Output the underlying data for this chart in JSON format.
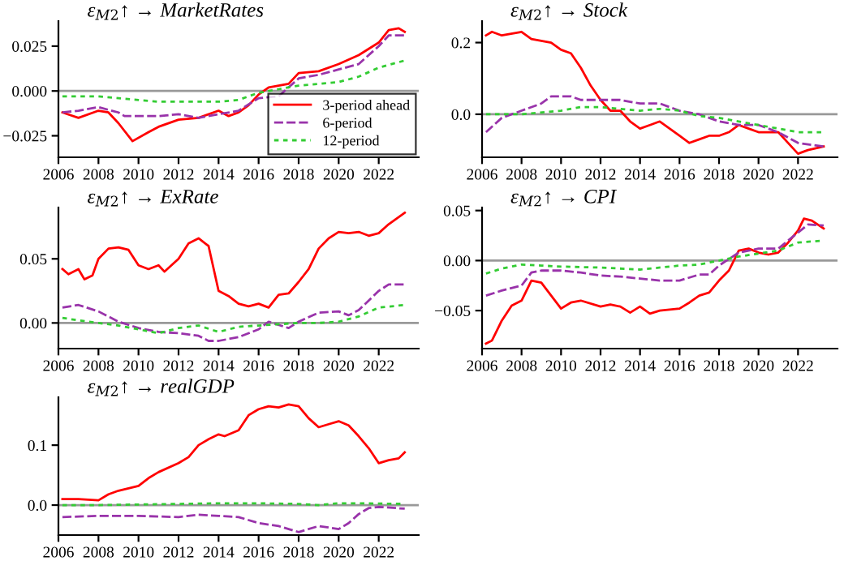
{
  "chart_data": [
    {
      "type": "line",
      "title": "ε$_{M2}$↑ → MarketRates",
      "xlim": [
        2006,
        2024
      ],
      "xticks": [
        2006,
        2008,
        2010,
        2012,
        2014,
        2016,
        2018,
        2020,
        2022
      ],
      "ylim": [
        -0.037,
        0.039
      ],
      "yticks": [
        {
          "value": -0.025,
          "label": "−0.025"
        },
        {
          "value": 0,
          "label": "0.000"
        },
        {
          "value": 0.025,
          "label": "0.025"
        }
      ],
      "grid": false,
      "legend": "bottom right",
      "ref_lines": [
        {
          "axis": "y",
          "value": 0,
          "color": "#999999"
        }
      ],
      "series": [
        {
          "name": "3-period ahead",
          "color": "#ff0000",
          "line_style": "solid",
          "x": [
            2006.2,
            2007,
            2008,
            2008.5,
            2009,
            2009.7,
            2010.5,
            2011,
            2012,
            2013,
            2014,
            2014.5,
            2015,
            2015.5,
            2016,
            2016.5,
            2017,
            2017.5,
            2018,
            2019,
            2020,
            2021,
            2022,
            2022.5,
            2023,
            2023.3
          ],
          "values": [
            -0.012,
            -0.015,
            -0.011,
            -0.012,
            -0.018,
            -0.028,
            -0.023,
            -0.02,
            -0.016,
            -0.015,
            -0.011,
            -0.014,
            -0.012,
            -0.008,
            -0.002,
            0.002,
            0.003,
            0.004,
            0.01,
            0.011,
            0.015,
            0.02,
            0.027,
            0.034,
            0.035,
            0.033
          ]
        },
        {
          "name": "6-period",
          "color": "#9933aa",
          "line_style": "dashed",
          "x": [
            2006.2,
            2007,
            2008,
            2009,
            2009.3,
            2011,
            2012,
            2013,
            2014,
            2015,
            2016,
            2017,
            2018,
            2019,
            2020,
            2021,
            2022,
            2022.5,
            2023.3
          ],
          "values": [
            -0.012,
            -0.011,
            -0.009,
            -0.012,
            -0.014,
            -0.014,
            -0.013,
            -0.015,
            -0.013,
            -0.011,
            -0.004,
            -0.003,
            0.007,
            0.009,
            0.012,
            0.015,
            0.025,
            0.031,
            0.031
          ]
        },
        {
          "name": "12-period",
          "color": "#33cc33",
          "line_style": "dotted",
          "x": [
            2006.2,
            2008,
            2010,
            2011,
            2014,
            2015,
            2016,
            2017,
            2018,
            2020,
            2021,
            2022,
            2023.3
          ],
          "values": [
            -0.003,
            -0.003,
            -0.005,
            -0.006,
            -0.006,
            -0.005,
            -0.001,
            0.001,
            0.003,
            0.005,
            0.008,
            0.013,
            0.017
          ]
        }
      ]
    },
    {
      "type": "line",
      "title": "ε$_{M2}$↑ → Stock",
      "xlim": [
        2006,
        2024
      ],
      "xticks": [
        2006,
        2008,
        2010,
        2012,
        2014,
        2016,
        2018,
        2020,
        2022
      ],
      "ylim": [
        -0.12,
        0.26
      ],
      "yticks": [
        {
          "value": 0,
          "label": "0.0"
        },
        {
          "value": 0.2,
          "label": "0.2"
        }
      ],
      "grid": false,
      "ref_lines": [
        {
          "axis": "y",
          "value": 0,
          "color": "#999999"
        }
      ],
      "series": [
        {
          "color": "#ff0000",
          "line_style": "solid",
          "x": [
            2006.2,
            2006.5,
            2007,
            2008,
            2008.5,
            2009.5,
            2010,
            2010.5,
            2011,
            2011.5,
            2012,
            2012.5,
            2013,
            2013.5,
            2014,
            2014.5,
            2015,
            2015.5,
            2016,
            2016.5,
            2017,
            2017.5,
            2018,
            2018.5,
            2019,
            2019.5,
            2020,
            2020.5,
            2021,
            2021.5,
            2022,
            2022.5,
            2023.3
          ],
          "values": [
            0.22,
            0.23,
            0.22,
            0.23,
            0.21,
            0.2,
            0.18,
            0.17,
            0.13,
            0.08,
            0.04,
            0.01,
            0.01,
            -0.02,
            -0.04,
            -0.03,
            -0.02,
            -0.04,
            -0.06,
            -0.08,
            -0.07,
            -0.06,
            -0.06,
            -0.05,
            -0.03,
            -0.04,
            -0.05,
            -0.05,
            -0.05,
            -0.08,
            -0.11,
            -0.1,
            -0.09
          ]
        },
        {
          "color": "#9933aa",
          "line_style": "dashed",
          "x": [
            2006.2,
            2007,
            2008,
            2009,
            2009.5,
            2010.5,
            2011,
            2012,
            2013,
            2014,
            2015,
            2016,
            2017,
            2018,
            2019,
            2020,
            2021,
            2022,
            2023.3
          ],
          "values": [
            -0.05,
            -0.01,
            0.01,
            0.03,
            0.05,
            0.05,
            0.04,
            0.04,
            0.04,
            0.03,
            0.03,
            0.01,
            0.0,
            -0.02,
            -0.03,
            -0.03,
            -0.05,
            -0.08,
            -0.09
          ]
        },
        {
          "color": "#33cc33",
          "line_style": "dotted",
          "x": [
            2006.2,
            2008,
            2010,
            2011,
            2012,
            2014,
            2015,
            2016,
            2017,
            2018,
            2020,
            2021,
            2022,
            2023.3
          ],
          "values": [
            0.0,
            0.0,
            0.01,
            0.02,
            0.02,
            0.01,
            0.015,
            0.01,
            -0.005,
            -0.01,
            -0.03,
            -0.04,
            -0.05,
            -0.05
          ]
        }
      ]
    },
    {
      "type": "line",
      "title": "ε$_{M2}$↑ → ExRate",
      "xlim": [
        2006,
        2024
      ],
      "xticks": [
        2006,
        2008,
        2010,
        2012,
        2014,
        2016,
        2018,
        2020,
        2022
      ],
      "ylim": [
        -0.02,
        0.09
      ],
      "yticks": [
        {
          "value": 0,
          "label": "0.00"
        },
        {
          "value": 0.05,
          "label": "0.05"
        }
      ],
      "grid": false,
      "ref_lines": [
        {
          "axis": "y",
          "value": 0,
          "color": "#999999"
        }
      ],
      "series": [
        {
          "color": "#ff0000",
          "line_style": "solid",
          "x": [
            2006.2,
            2006.5,
            2007,
            2007.3,
            2007.7,
            2008,
            2008.5,
            2009,
            2009.5,
            2010,
            2010.5,
            2011,
            2011.3,
            2012,
            2012.5,
            2013,
            2013.5,
            2014,
            2014.5,
            2015,
            2015.5,
            2016,
            2016.5,
            2017,
            2017.5,
            2018,
            2018.5,
            2019,
            2019.5,
            2020,
            2020.5,
            2021,
            2021.5,
            2022,
            2022.5,
            2023.3
          ],
          "values": [
            0.042,
            0.038,
            0.042,
            0.034,
            0.037,
            0.05,
            0.058,
            0.059,
            0.057,
            0.045,
            0.042,
            0.045,
            0.04,
            0.05,
            0.062,
            0.066,
            0.06,
            0.025,
            0.021,
            0.015,
            0.013,
            0.015,
            0.012,
            0.022,
            0.023,
            0.032,
            0.042,
            0.058,
            0.066,
            0.071,
            0.07,
            0.071,
            0.068,
            0.07,
            0.077,
            0.086
          ]
        },
        {
          "color": "#9933aa",
          "line_style": "dashed",
          "x": [
            2006.2,
            2007,
            2008,
            2009,
            2010,
            2011,
            2012,
            2013,
            2013.5,
            2014,
            2015,
            2016,
            2016.5,
            2017.5,
            2018,
            2019,
            2020,
            2020.5,
            2021,
            2022,
            2022.5,
            2023.3
          ],
          "values": [
            0.012,
            0.014,
            0.009,
            0.001,
            -0.004,
            -0.007,
            -0.008,
            -0.01,
            -0.014,
            -0.014,
            -0.011,
            -0.005,
            0.001,
            -0.004,
            0.001,
            0.008,
            0.009,
            0.006,
            0.01,
            0.025,
            0.03,
            0.03
          ]
        },
        {
          "color": "#33cc33",
          "line_style": "dotted",
          "x": [
            2006.2,
            2007,
            2008,
            2009,
            2010,
            2011,
            2012,
            2013,
            2014,
            2015,
            2016,
            2018,
            2019,
            2020,
            2021,
            2022,
            2023.3
          ],
          "values": [
            0.004,
            0.002,
            0.0,
            -0.002,
            -0.005,
            -0.008,
            -0.004,
            -0.002,
            -0.007,
            -0.003,
            -0.002,
            0.0,
            0.0,
            0.001,
            0.005,
            0.012,
            0.014
          ]
        }
      ]
    },
    {
      "type": "line",
      "title": "ε$_{M2}$↑ → CPI",
      "xlim": [
        2006,
        2024
      ],
      "xticks": [
        2006,
        2008,
        2010,
        2012,
        2014,
        2016,
        2018,
        2020,
        2022
      ],
      "ylim": [
        -0.088,
        0.053
      ],
      "yticks": [
        {
          "value": -0.05,
          "label": "−0.05"
        },
        {
          "value": 0,
          "label": "0.00"
        },
        {
          "value": 0.05,
          "label": "0.05"
        }
      ],
      "grid": false,
      "ref_lines": [
        {
          "axis": "y",
          "value": 0,
          "color": "#999999"
        }
      ],
      "series": [
        {
          "color": "#ff0000",
          "line_style": "solid",
          "x": [
            2006.2,
            2006.5,
            2007,
            2007.5,
            2008,
            2008.5,
            2009,
            2009.5,
            2010,
            2010.5,
            2011,
            2012,
            2012.5,
            2013,
            2013.5,
            2014,
            2014.5,
            2015,
            2016,
            2016.5,
            2017,
            2017.5,
            2018,
            2018.5,
            2019,
            2019.5,
            2020,
            2020.5,
            2021,
            2021.5,
            2022,
            2022.3,
            2022.7,
            2023.3
          ],
          "values": [
            -0.083,
            -0.08,
            -0.06,
            -0.045,
            -0.04,
            -0.02,
            -0.022,
            -0.035,
            -0.048,
            -0.042,
            -0.04,
            -0.046,
            -0.044,
            -0.046,
            -0.052,
            -0.046,
            -0.053,
            -0.05,
            -0.048,
            -0.042,
            -0.035,
            -0.032,
            -0.02,
            -0.01,
            0.01,
            0.012,
            0.008,
            0.006,
            0.008,
            0.018,
            0.03,
            0.042,
            0.04,
            0.032
          ]
        },
        {
          "color": "#9933aa",
          "line_style": "dashed",
          "x": [
            2006.2,
            2007,
            2008,
            2008.5,
            2009,
            2010,
            2011,
            2012,
            2013,
            2014,
            2015,
            2016,
            2017,
            2017.5,
            2018,
            2019,
            2020,
            2021,
            2022,
            2022.5,
            2023.3
          ],
          "values": [
            -0.035,
            -0.03,
            -0.025,
            -0.012,
            -0.01,
            -0.01,
            -0.012,
            -0.015,
            -0.016,
            -0.018,
            -0.02,
            -0.02,
            -0.014,
            -0.014,
            -0.005,
            0.008,
            0.012,
            0.012,
            0.028,
            0.036,
            0.035
          ]
        },
        {
          "color": "#33cc33",
          "line_style": "dotted",
          "x": [
            2006.2,
            2007,
            2008,
            2009,
            2010,
            2012,
            2014,
            2016,
            2017,
            2018,
            2019,
            2020,
            2021,
            2022,
            2023.3
          ],
          "values": [
            -0.013,
            -0.008,
            -0.004,
            -0.005,
            -0.006,
            -0.007,
            -0.009,
            -0.005,
            -0.004,
            0.0,
            0.004,
            0.007,
            0.01,
            0.018,
            0.02
          ]
        }
      ]
    },
    {
      "type": "line",
      "title": "ε$_{M2}$↑ → realGDP",
      "xlim": [
        2006,
        2024
      ],
      "xticks": [
        2006,
        2008,
        2010,
        2012,
        2014,
        2016,
        2018,
        2020,
        2022
      ],
      "ylim": [
        -0.05,
        0.18
      ],
      "yticks": [
        {
          "value": 0,
          "label": "0.0"
        },
        {
          "value": 0.1,
          "label": "0.1"
        }
      ],
      "grid": false,
      "ref_lines": [
        {
          "axis": "y",
          "value": 0,
          "color": "#999999"
        }
      ],
      "series": [
        {
          "color": "#ff0000",
          "line_style": "solid",
          "x": [
            2006.2,
            2007,
            2008,
            2008.5,
            2009,
            2010,
            2010.5,
            2011,
            2012,
            2012.5,
            2013,
            2013.5,
            2014,
            2014.3,
            2015,
            2015.5,
            2016,
            2016.5,
            2017,
            2017.5,
            2018,
            2018.5,
            2019,
            2019.5,
            2020,
            2020.5,
            2021,
            2021.5,
            2022,
            2022.5,
            2023,
            2023.3
          ],
          "values": [
            0.01,
            0.01,
            0.008,
            0.018,
            0.024,
            0.032,
            0.045,
            0.055,
            0.07,
            0.08,
            0.1,
            0.11,
            0.118,
            0.115,
            0.125,
            0.15,
            0.16,
            0.165,
            0.163,
            0.168,
            0.165,
            0.145,
            0.13,
            0.135,
            0.14,
            0.133,
            0.115,
            0.095,
            0.07,
            0.075,
            0.078,
            0.088
          ]
        },
        {
          "color": "#9933aa",
          "line_style": "dashed",
          "x": [
            2006.2,
            2008,
            2010,
            2012,
            2013,
            2014,
            2015,
            2016,
            2017,
            2018,
            2019,
            2020,
            2020.5,
            2021,
            2021.5,
            2022,
            2023.3
          ],
          "values": [
            -0.02,
            -0.018,
            -0.018,
            -0.02,
            -0.016,
            -0.018,
            -0.02,
            -0.03,
            -0.035,
            -0.045,
            -0.035,
            -0.04,
            -0.03,
            -0.015,
            -0.005,
            -0.003,
            -0.006
          ]
        },
        {
          "color": "#33cc33",
          "line_style": "dotted",
          "x": [
            2006.2,
            2008,
            2012,
            2014,
            2016,
            2018,
            2019,
            2020,
            2021,
            2023.3
          ],
          "values": [
            0.0,
            0.0,
            0.002,
            0.003,
            0.003,
            0.002,
            0.0,
            0.003,
            0.003,
            0.002
          ]
        }
      ]
    }
  ]
}
